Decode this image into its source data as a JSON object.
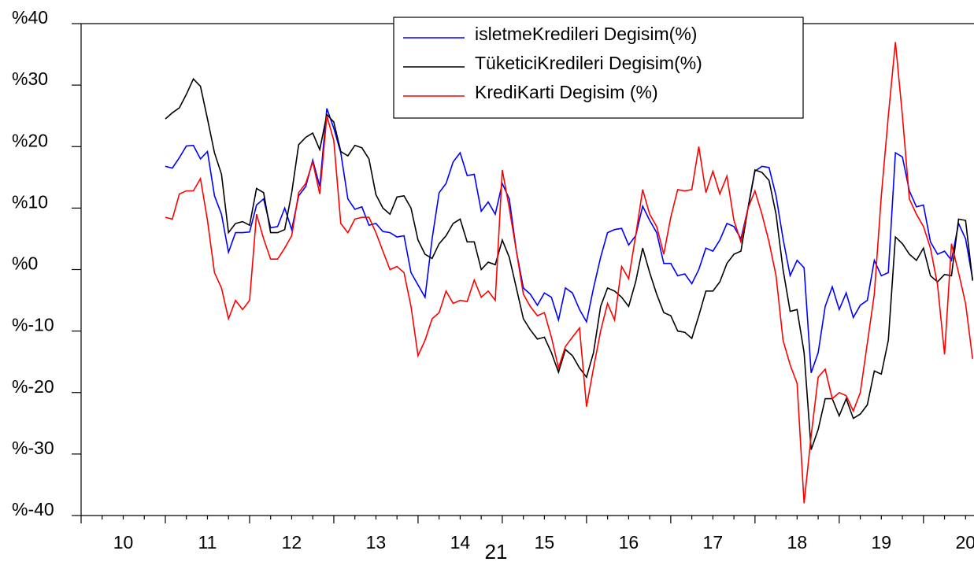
{
  "chart_data": {
    "type": "line",
    "annotation": "21",
    "x": [
      11,
      11.083,
      11.167,
      11.25,
      11.333,
      11.417,
      11.5,
      11.583,
      11.667,
      11.75,
      11.833,
      11.917,
      12,
      12.083,
      12.167,
      12.25,
      12.333,
      12.417,
      12.5,
      12.583,
      12.667,
      12.75,
      12.833,
      12.917,
      13,
      13.083,
      13.167,
      13.25,
      13.333,
      13.417,
      13.5,
      13.583,
      13.667,
      13.75,
      13.833,
      13.917,
      14,
      14.083,
      14.167,
      14.25,
      14.333,
      14.417,
      14.5,
      14.583,
      14.667,
      14.75,
      14.833,
      14.917,
      15,
      15.083,
      15.167,
      15.25,
      15.333,
      15.417,
      15.5,
      15.583,
      15.667,
      15.75,
      15.833,
      15.917,
      16,
      16.083,
      16.167,
      16.25,
      16.333,
      16.417,
      16.5,
      16.583,
      16.667,
      16.75,
      16.833,
      16.917,
      17,
      17.083,
      17.167,
      17.25,
      17.333,
      17.417,
      17.5,
      17.583,
      17.667,
      17.75,
      17.833,
      17.917,
      18,
      18.083,
      18.167,
      18.25,
      18.333,
      18.417,
      18.5,
      18.583,
      18.667,
      18.75,
      18.833,
      18.917,
      19,
      19.083,
      19.167,
      19.25,
      19.333,
      19.417,
      19.5,
      19.583,
      19.667,
      19.75,
      19.833,
      19.917,
      20,
      20.083,
      20.167,
      20.25,
      20.333,
      20.417,
      20.5,
      20.583
    ],
    "series": [
      {
        "name": "isletmeKredileri Degisim(%)",
        "color": "#0000ff",
        "values": [
          16.8,
          16.5,
          18.2,
          20.1,
          20.2,
          18,
          19.2,
          12,
          9,
          2.8,
          6,
          6,
          6.1,
          10.5,
          11.5,
          6.8,
          7,
          10,
          6.5,
          12,
          13.5,
          17.8,
          13.5,
          26.2,
          23,
          19,
          11.5,
          9.8,
          10.2,
          7.2,
          7.5,
          6.2,
          6,
          5.3,
          5.5,
          -0.5,
          -2.5,
          -4.5,
          5,
          12.5,
          14,
          17.5,
          19,
          15.3,
          15.5,
          9.5,
          11,
          9,
          14,
          11.5,
          3,
          -3,
          -4,
          -5.8,
          -3.8,
          -4.5,
          -8.2,
          -3,
          -3.8,
          -6.5,
          -8.5,
          -3,
          2,
          6,
          6.5,
          6.7,
          4,
          5.5,
          10.3,
          8,
          6,
          1,
          1,
          -1,
          -0.7,
          -2.3,
          0,
          3.5,
          3,
          4.8,
          7.5,
          7,
          5,
          10,
          16,
          16.8,
          16.6,
          12,
          5,
          -1,
          1.5,
          0.3,
          -16.8,
          -13.5,
          -6,
          -2.8,
          -6.5,
          -3.8,
          -7.8,
          -5.8,
          -5,
          1.5,
          -1,
          -0.5,
          19,
          18.3,
          12.8,
          10.2,
          10.5,
          4.5,
          2.5,
          3,
          1.5,
          7.5,
          5,
          -1.5
        ]
      },
      {
        "name": "TüketiciKredileri Degisim(%)",
        "color": "#000000",
        "values": [
          24.5,
          25.5,
          26.3,
          28.5,
          31,
          29.8,
          24.5,
          19,
          15.5,
          6,
          7.5,
          7.8,
          7.2,
          13.2,
          12.5,
          6,
          6,
          6.5,
          12.5,
          20.3,
          21.5,
          22.2,
          19.5,
          25.2,
          24,
          19.2,
          18.5,
          20.2,
          19.8,
          18,
          12.2,
          10,
          9,
          11.8,
          12,
          10,
          4.8,
          2.5,
          1.8,
          4.2,
          5.5,
          7.5,
          8.2,
          4.5,
          4.5,
          0,
          1.2,
          0.8,
          4.8,
          2,
          -3,
          -8,
          -9.8,
          -11.3,
          -11,
          -13.5,
          -16.7,
          -13,
          -14,
          -16,
          -17.5,
          -13.5,
          -6,
          -3,
          -3.5,
          -4.5,
          -6,
          -2,
          3.5,
          -0.5,
          -4,
          -7,
          -7.5,
          -10,
          -10.2,
          -11.2,
          -7.5,
          -3.5,
          -3.5,
          -2,
          1,
          2.5,
          3,
          10,
          16.2,
          15.8,
          14.5,
          9,
          0,
          -6.8,
          -6.5,
          -13.5,
          -29.3,
          -26,
          -21,
          -21,
          -23.8,
          -21,
          -24.2,
          -23.5,
          -22,
          -16.5,
          -17,
          -11.5,
          5.3,
          4.2,
          2.5,
          1.5,
          3.5,
          -1,
          -2,
          -0.8,
          -1,
          8.2,
          8,
          -1.8
        ]
      },
      {
        "name": "KrediKarti Degisim (%)",
        "color": "#ff0000",
        "values": [
          8.5,
          8.2,
          12.3,
          12.8,
          12.8,
          14.8,
          8,
          -0.5,
          -3,
          -8,
          -5,
          -6.5,
          -5,
          9,
          5,
          1.7,
          1.7,
          3.5,
          5.5,
          12.5,
          14,
          17.5,
          12.3,
          25,
          21,
          7.5,
          6,
          8.2,
          8.5,
          8.5,
          6,
          3,
          0,
          0.5,
          -0.5,
          -6,
          -14,
          -11.5,
          -8,
          -7,
          -3.5,
          -5.5,
          -5,
          -5.2,
          -1.7,
          -4.5,
          -3.5,
          -5,
          16.2,
          10,
          3,
          -4,
          -6,
          -7.5,
          -7,
          -11,
          -16,
          -12.5,
          -11,
          -9.5,
          -22.3,
          -16,
          -10,
          -5.5,
          -8.2,
          0.5,
          -1.5,
          5.5,
          13,
          9,
          7,
          2.5,
          8.5,
          13,
          12.8,
          13,
          20,
          12.5,
          16,
          12.3,
          15.2,
          8,
          4.5,
          10,
          12.8,
          9,
          4.5,
          -1,
          -11.5,
          -15.5,
          -18.5,
          -38,
          -27,
          -17.5,
          -16.2,
          -21,
          -20,
          -20.5,
          -23,
          -20,
          -12,
          -4,
          12,
          25,
          37,
          25,
          11.5,
          9,
          7,
          3.5,
          -2.5,
          -13.8,
          4.2,
          -0.5,
          -5.5,
          -14.5
        ]
      }
    ],
    "xlim": [
      10,
      20.6
    ],
    "xticks": [
      10,
      11,
      12,
      13,
      14,
      15,
      16,
      17,
      18,
      19,
      20
    ],
    "ylim": [
      -40,
      40
    ],
    "yticks": [
      {
        "value": -40,
        "label": "%-40"
      },
      {
        "value": -30,
        "label": "%-30"
      },
      {
        "value": -20,
        "label": "%-20"
      },
      {
        "value": -10,
        "label": "%-10"
      },
      {
        "value": 0,
        "label": "%0"
      },
      {
        "value": 10,
        "label": "%10"
      },
      {
        "value": 20,
        "label": "%20"
      },
      {
        "value": 30,
        "label": "%30"
      },
      {
        "value": 40,
        "label": "%40"
      }
    ],
    "legend": "top"
  }
}
